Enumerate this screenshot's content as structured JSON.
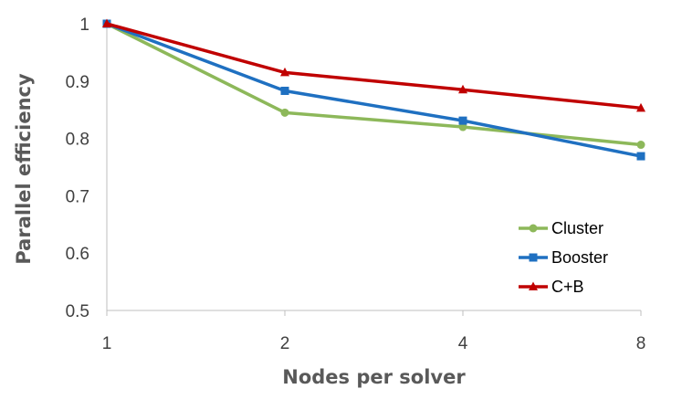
{
  "chart_data": {
    "type": "line",
    "title": "",
    "xlabel": "Nodes per solver",
    "ylabel": "Parallel efficiency",
    "categories": [
      "1",
      "2",
      "4",
      "8"
    ],
    "ylim": [
      0.5,
      1
    ],
    "yticks": [
      "0.5",
      "0.6",
      "0.7",
      "0.8",
      "0.9",
      "1"
    ],
    "grid": "none",
    "legend_position": "right",
    "series": [
      {
        "name": "Cluster",
        "values": [
          1.0,
          0.845,
          0.82,
          0.789
        ],
        "color": "#8db85a",
        "marker": "circle"
      },
      {
        "name": "Booster",
        "values": [
          1.0,
          0.883,
          0.831,
          0.769
        ],
        "color": "#1f70c1",
        "marker": "square"
      },
      {
        "name": "C+B",
        "values": [
          1.0,
          0.915,
          0.885,
          0.853
        ],
        "color": "#c00000",
        "marker": "triangle"
      }
    ]
  }
}
